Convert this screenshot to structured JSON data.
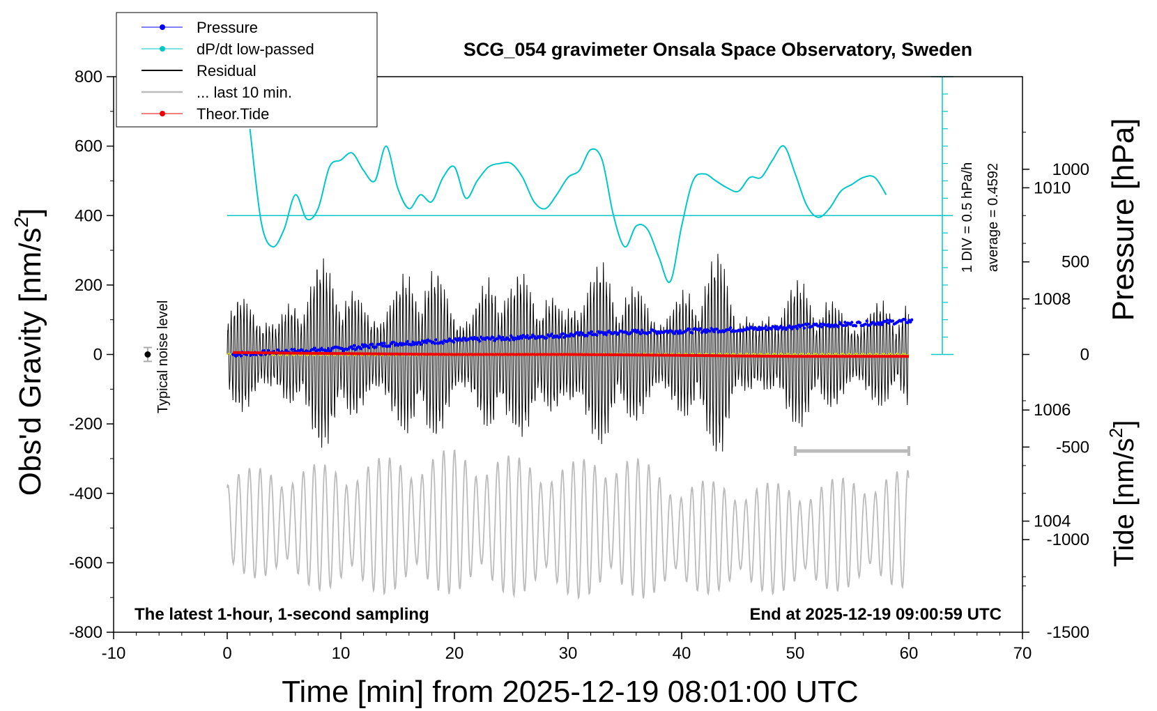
{
  "chart_data": {
    "type": "line",
    "title": "SCG_054 gravimeter Onsala Space Observatory, Sweden",
    "xlabel": "Time [min] from 2025-12-19 08:01:00 UTC",
    "ylabel_left": "Obs'd Gravity [nm/s",
    "ylabel_left_sup": "2",
    "ylabel_left_end": "]",
    "ylabel_right_pressure": "Pressure [hPa]",
    "ylabel_right_tide": "Tide [nm/s",
    "ylabel_right_tide_sup": "2",
    "ylabel_right_tide_end": "]",
    "xlim": [
      -10,
      70
    ],
    "ylim_left": [
      -800,
      800
    ],
    "ylim_pressure": [
      1002,
      1012
    ],
    "ylim_tide": [
      -1500,
      1500
    ],
    "x_ticks": [
      -10,
      0,
      10,
      20,
      30,
      40,
      50,
      60,
      70
    ],
    "y_ticks_left": [
      -800,
      -600,
      -400,
      -200,
      0,
      200,
      400,
      600,
      800
    ],
    "y_ticks_pressure": [
      1004,
      1006,
      1008,
      1010
    ],
    "y_ticks_tide": [
      -1500,
      -1000,
      -500,
      0,
      500,
      1000
    ],
    "legend_placement": "top-left",
    "legend": [
      {
        "name": "Pressure",
        "color": "#0000ff",
        "style": "line-dot"
      },
      {
        "name": "dP/dt low-passed",
        "color": "#00c8c8",
        "style": "line-dot"
      },
      {
        "name": "Residual",
        "color": "#000000",
        "style": "line"
      },
      {
        "name": "... last 10 min.",
        "color": "#bbbbbb",
        "style": "line"
      },
      {
        "name": "Theor.Tide",
        "color": "#ee0000",
        "style": "line-dot"
      }
    ],
    "annotations": {
      "bottom_left": "The latest 1-hour, 1-second sampling",
      "bottom_right": "End at 2025-12-19 09:00:59 UTC",
      "scale_div": "1 DIV = 0.5 hPa/h",
      "scale_avg": "average = 0.4592",
      "noise_label": "Typical noise level"
    },
    "noise_level": {
      "x": -7,
      "y": 0,
      "err": 20
    },
    "last10_bar": {
      "x_start": 50,
      "x_end": 60
    },
    "series": [
      {
        "name": "Pressure",
        "axis": "pressure",
        "color": "#0000ff",
        "x": [
          0.5,
          5,
          10,
          15,
          20,
          25,
          30,
          35,
          40,
          45,
          50,
          55,
          60
        ],
        "y": [
          1007.0,
          1007.05,
          1007.1,
          1007.2,
          1007.25,
          1007.3,
          1007.35,
          1007.4,
          1007.42,
          1007.45,
          1007.5,
          1007.55,
          1007.6
        ]
      },
      {
        "name": "dP/dt low-passed",
        "axis": "left",
        "color": "#00c8c8",
        "x": [
          2,
          3,
          4,
          5,
          6,
          7,
          8,
          9,
          10,
          11,
          12,
          13,
          14,
          15,
          16,
          17,
          18,
          19,
          20,
          21,
          22,
          23,
          24,
          25,
          26,
          27,
          28,
          29,
          30,
          31,
          32,
          33,
          34,
          35,
          36,
          37,
          38,
          39,
          40,
          41,
          42,
          43,
          44,
          45,
          46,
          47,
          48,
          49,
          50,
          51,
          52,
          53,
          54,
          55,
          56,
          57,
          58
        ],
        "y": [
          650,
          380,
          310,
          360,
          460,
          390,
          420,
          540,
          560,
          580,
          530,
          500,
          600,
          480,
          420,
          460,
          440,
          510,
          540,
          450,
          500,
          540,
          550,
          550,
          510,
          440,
          420,
          460,
          510,
          530,
          590,
          560,
          400,
          310,
          370,
          360,
          280,
          210,
          370,
          500,
          520,
          500,
          480,
          470,
          510,
          510,
          560,
          600,
          520,
          430,
          395,
          420,
          470,
          490,
          510,
          510,
          460
        ]
      },
      {
        "name": "Residual",
        "axis": "left",
        "color": "#000000",
        "x": [
          0,
          5,
          10,
          15,
          17.5,
          20,
          23.5,
          25,
          30,
          33,
          35,
          40,
          43.5,
          45,
          50,
          55,
          60
        ],
        "amplitude": [
          160,
          250,
          300,
          250,
          320,
          220,
          360,
          230,
          330,
          290,
          250,
          250,
          320,
          220,
          230,
          210,
          180
        ]
      },
      {
        "name": "... last 10 min.",
        "axis": "left",
        "color": "#bbbbbb",
        "x": [
          0,
          10,
          20,
          30,
          34.5,
          40,
          50,
          60
        ],
        "y_min": [
          -630,
          -690,
          -690,
          -700,
          -710,
          -690,
          -690,
          -670
        ],
        "y_max": [
          -330,
          -310,
          -270,
          -310,
          -270,
          -360,
          -370,
          -330
        ]
      },
      {
        "name": "Theor.Tide",
        "axis": "tide",
        "color": "#ee0000",
        "x": [
          0.5,
          10,
          20,
          30,
          40,
          50,
          60
        ],
        "y": [
          10,
          5,
          0,
          0,
          -5,
          -10,
          -10
        ]
      }
    ]
  }
}
